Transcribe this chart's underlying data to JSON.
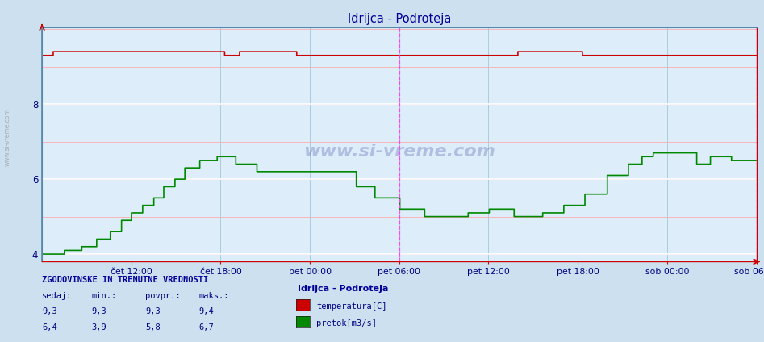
{
  "title": "Idrijca - Podroteja",
  "bg_color": "#cce0f0",
  "plot_bg_color": "#ddeefa",
  "grid_white_color": "#ffffff",
  "grid_pink_color": "#ffaaaa",
  "grid_blue_color": "#aaccdd",
  "ylim": [
    3.8,
    10.05
  ],
  "yticks": [
    4,
    6,
    8
  ],
  "xlabel_ticks": [
    "čet 12:00",
    "čet 18:00",
    "pet 00:00",
    "pet 06:00",
    "pet 12:00",
    "pet 18:00",
    "sob 00:00",
    "sob 06:00"
  ],
  "n_points": 576,
  "temp_color": "#cc0000",
  "flow_color": "#008800",
  "vline_color": "#ff44ff",
  "title_color": "#000099",
  "tick_color": "#000080",
  "watermark_color": "#000080",
  "table_header": "ZGODOVINSKE IN TRENUTNE VREDNOSTI",
  "table_cols": [
    "sedaj:",
    "min.:",
    "povpr.:",
    "maks.:"
  ],
  "table_temp": [
    "9,3",
    "9,3",
    "9,3",
    "9,4"
  ],
  "table_flow": [
    "6,4",
    "3,9",
    "5,8",
    "6,7"
  ],
  "legend_title": "Idrijca - Podroteja",
  "legend_items": [
    "temperatura[C]",
    "pretok[m3/s]"
  ],
  "legend_colors": [
    "#cc0000",
    "#008800"
  ]
}
